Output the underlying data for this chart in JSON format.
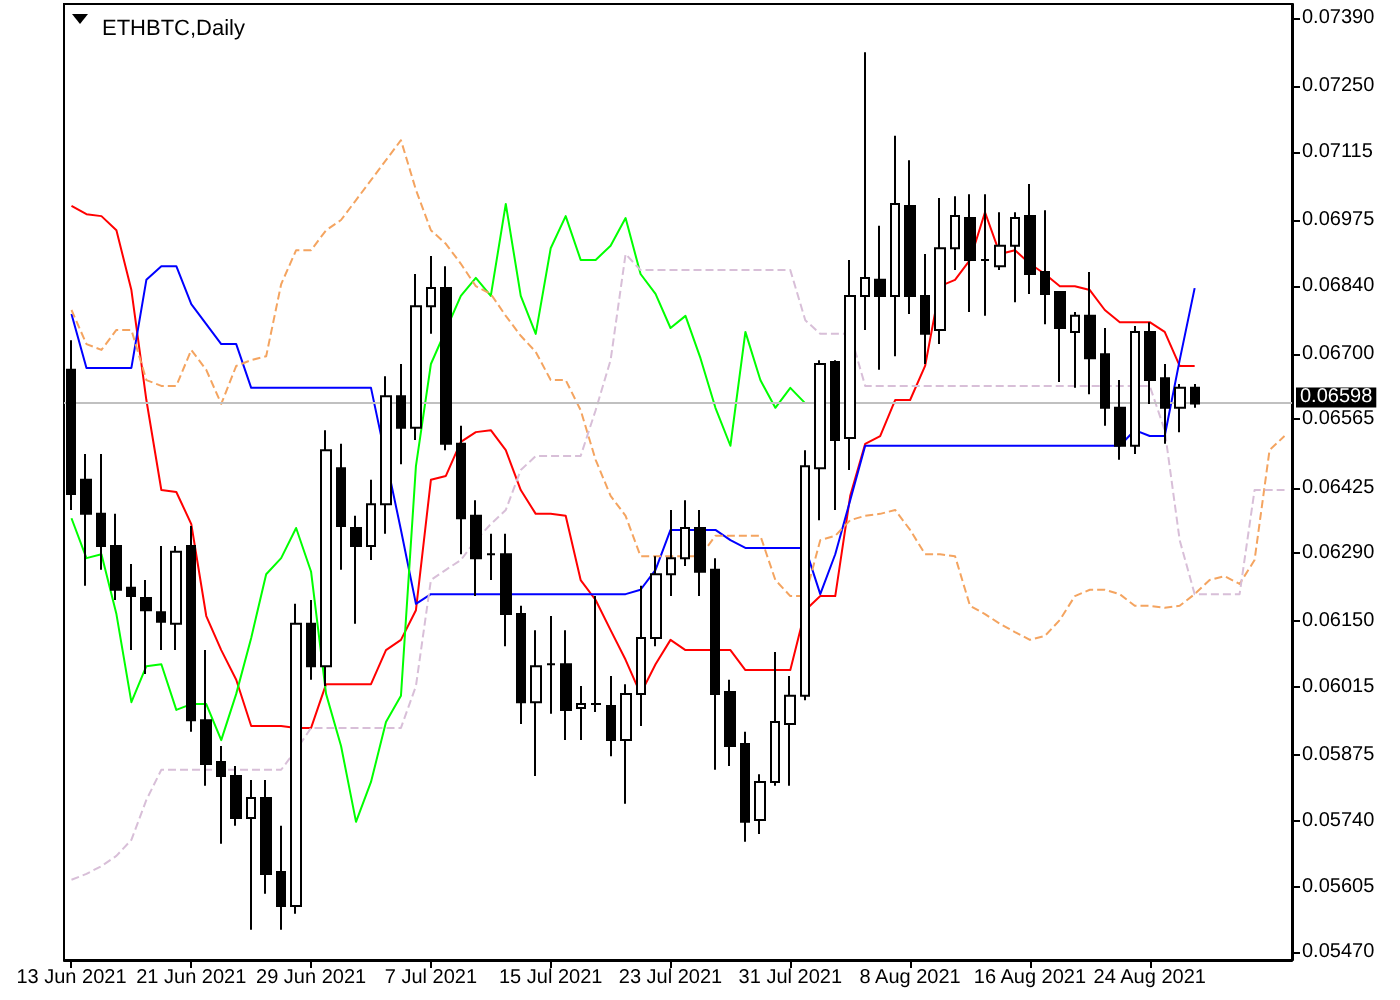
{
  "chart_data": {
    "type": "candlestick",
    "title": "ETHBTC,Daily",
    "categories": [
      "13 Jun 2021",
      null,
      null,
      null,
      null,
      null,
      null,
      null,
      "21 Jun 2021",
      null,
      null,
      null,
      null,
      null,
      null,
      null,
      "29 Jun 2021",
      null,
      null,
      null,
      null,
      null,
      null,
      null,
      "7 Jul 2021",
      null,
      null,
      null,
      null,
      null,
      null,
      null,
      "15 Jul 2021",
      null,
      null,
      null,
      null,
      null,
      null,
      null,
      "23 Jul 2021",
      null,
      null,
      null,
      null,
      null,
      null,
      null,
      "31 Jul 2021",
      null,
      null,
      null,
      null,
      null,
      null,
      null,
      "8 Aug 2021",
      null,
      null,
      null,
      null,
      null,
      null,
      null,
      "16 Aug 2021",
      null,
      null,
      null,
      null,
      null,
      null,
      null,
      "24 Aug 2021",
      null,
      null,
      null,
      null,
      null,
      null,
      null,
      null,
      null
    ],
    "ohlc": [
      [
        0.06667,
        0.06728,
        0.06379,
        0.06412
      ],
      [
        0.06441,
        0.06494,
        0.06223,
        0.06371
      ],
      [
        0.06371,
        0.06494,
        0.06256,
        0.06305
      ],
      [
        0.06305,
        0.06371,
        0.06194,
        0.06215
      ],
      [
        0.06219,
        0.06268,
        0.06091,
        0.06202
      ],
      [
        0.06198,
        0.06235,
        0.06042,
        0.06173
      ],
      [
        0.06169,
        0.06305,
        0.06091,
        0.06149
      ],
      [
        0.06145,
        0.06305,
        0.06091,
        0.06293
      ],
      [
        0.06305,
        0.06346,
        0.05923,
        0.05947
      ],
      [
        0.05947,
        0.06091,
        0.05812,
        0.05857
      ],
      [
        0.05861,
        0.05894,
        0.05693,
        0.05832
      ],
      [
        0.05832,
        0.05853,
        0.0573,
        0.05746
      ],
      [
        0.05746,
        0.05824,
        0.05516,
        0.05787
      ],
      [
        0.05787,
        0.05824,
        0.0559,
        0.05631
      ],
      [
        0.05635,
        0.0573,
        0.05516,
        0.05565
      ],
      [
        0.05565,
        0.06186,
        0.05549,
        0.06145
      ],
      [
        0.06145,
        0.06194,
        0.0603,
        0.06058
      ],
      [
        0.06058,
        0.06543,
        0.06017,
        0.06502
      ],
      [
        0.06465,
        0.06515,
        0.06256,
        0.06346
      ],
      [
        0.06342,
        0.06367,
        0.06145,
        0.06305
      ],
      [
        0.06305,
        0.06441,
        0.06276,
        0.06391
      ],
      [
        0.06391,
        0.06654,
        0.0633,
        0.06613
      ],
      [
        0.06613,
        0.06679,
        0.06473,
        0.06548
      ],
      [
        0.06548,
        0.06864,
        0.06523,
        0.06798
      ],
      [
        0.06798,
        0.06901,
        0.06741,
        0.06835
      ],
      [
        0.06835,
        0.0688,
        0.06502,
        0.06515
      ],
      [
        0.06515,
        0.06552,
        0.06288,
        0.06362
      ],
      [
        0.06367,
        0.06399,
        0.06202,
        0.0628
      ],
      [
        0.06288,
        0.0633,
        0.06235,
        0.06288
      ],
      [
        0.06288,
        0.0633,
        0.06099,
        0.06165
      ],
      [
        0.06165,
        0.06182,
        0.05939,
        0.05984
      ],
      [
        0.05984,
        0.06132,
        0.05832,
        0.06058
      ],
      [
        0.06062,
        0.06161,
        0.0596,
        0.06062
      ],
      [
        0.06062,
        0.06132,
        0.05906,
        0.05968
      ],
      [
        0.05972,
        0.06017,
        0.05906,
        0.0598
      ],
      [
        0.0598,
        0.06202,
        0.05964,
        0.0598
      ],
      [
        0.05976,
        0.06038,
        0.05873,
        0.05906
      ],
      [
        0.05906,
        0.06021,
        0.05775,
        0.06001
      ],
      [
        0.06001,
        0.06223,
        0.05935,
        0.06116
      ],
      [
        0.06116,
        0.06284,
        0.06099,
        0.06247
      ],
      [
        0.06247,
        0.06379,
        0.06202,
        0.0628
      ],
      [
        0.0628,
        0.06399,
        0.06264,
        0.06342
      ],
      [
        0.06342,
        0.06379,
        0.06202,
        0.06252
      ],
      [
        0.06256,
        0.0628,
        0.05845,
        0.06001
      ],
      [
        0.06005,
        0.0603,
        0.05853,
        0.05894
      ],
      [
        0.05898,
        0.05923,
        0.05697,
        0.05738
      ],
      [
        0.05742,
        0.05836,
        0.05713,
        0.0582
      ],
      [
        0.0582,
        0.06087,
        0.05812,
        0.05943
      ],
      [
        0.05939,
        0.06038,
        0.05812,
        0.05997
      ],
      [
        0.05997,
        0.06502,
        0.05988,
        0.06469
      ],
      [
        0.06465,
        0.06687,
        0.06358,
        0.06679
      ],
      [
        0.06683,
        0.06687,
        0.06379,
        0.06523
      ],
      [
        0.06527,
        0.06893,
        0.06461,
        0.06819
      ],
      [
        0.06819,
        0.0732,
        0.06749,
        0.06856
      ],
      [
        0.06852,
        0.06963,
        0.06667,
        0.06819
      ],
      [
        0.06819,
        0.07148,
        0.06695,
        0.07008
      ],
      [
        0.07004,
        0.07098,
        0.06782,
        0.06819
      ],
      [
        0.06819,
        0.06905,
        0.06679,
        0.06741
      ],
      [
        0.06749,
        0.0702,
        0.0672,
        0.06917
      ],
      [
        0.06917,
        0.07024,
        0.06872,
        0.06983
      ],
      [
        0.06979,
        0.07028,
        0.06786,
        0.06893
      ],
      [
        0.06893,
        0.07028,
        0.06778,
        0.06893
      ],
      [
        0.0688,
        0.06991,
        0.06872,
        0.06922
      ],
      [
        0.06922,
        0.06991,
        0.06806,
        0.06979
      ],
      [
        0.06983,
        0.07049,
        0.06823,
        0.06864
      ],
      [
        0.06868,
        0.06995,
        0.06761,
        0.06823
      ],
      [
        0.06827,
        0.06827,
        0.06642,
        0.06753
      ],
      [
        0.06745,
        0.06786,
        0.0663,
        0.06778
      ],
      [
        0.06778,
        0.06868,
        0.06617,
        0.06691
      ],
      [
        0.06699,
        0.06753,
        0.06552,
        0.06589
      ],
      [
        0.06589,
        0.06646,
        0.06482,
        0.06511
      ],
      [
        0.06511,
        0.06757,
        0.06494,
        0.06745
      ],
      [
        0.06745,
        0.06765,
        0.06597,
        0.06646
      ],
      [
        0.0665,
        0.06679,
        0.06515,
        0.06589
      ],
      [
        0.06589,
        0.06638,
        0.06539,
        0.0663
      ],
      [
        0.0663,
        0.06638,
        0.06589,
        0.06598
      ],
      null,
      null,
      null,
      null,
      null,
      null
    ],
    "series": [
      {
        "type": "line",
        "color": "#ff0000",
        "line_style": "solid",
        "values": [
          0.07004,
          0.06987,
          0.06983,
          0.06954,
          0.06831,
          0.06605,
          0.0642,
          0.06416,
          0.0635,
          0.06161,
          0.06091,
          0.0603,
          0.05935,
          0.05935,
          0.05935,
          0.05931,
          0.05931,
          0.06021,
          0.06021,
          0.06021,
          0.06021,
          0.06091,
          0.06112,
          0.06173,
          0.06441,
          0.06449,
          0.06519,
          0.06539,
          0.06543,
          0.06502,
          0.0642,
          0.06371,
          0.06371,
          0.06367,
          0.06235,
          0.06194,
          0.06132,
          0.06071,
          0.06001,
          0.06062,
          0.06112,
          0.06091,
          0.06091,
          0.06091,
          0.06091,
          0.0605,
          0.0605,
          0.0605,
          0.0605,
          0.06173,
          0.06202,
          0.06202,
          0.06408,
          0.06515,
          0.06531,
          0.06605,
          0.06605,
          0.06675,
          0.06839,
          0.06852,
          0.06893,
          0.06991,
          0.06905,
          0.06913,
          0.06885,
          0.06864,
          0.06839,
          0.06839,
          0.06831,
          0.0679,
          0.06765,
          0.06765,
          0.06765,
          0.06745,
          0.06675,
          0.06675,
          null,
          null,
          null,
          null,
          null,
          null
        ]
      },
      {
        "type": "line",
        "color": "#0000ff",
        "line_style": "solid",
        "values": [
          0.06782,
          0.06671,
          0.06671,
          0.06671,
          0.06671,
          0.06852,
          0.0688,
          0.0688,
          0.06802,
          0.06761,
          0.0672,
          0.0672,
          0.0663,
          0.0663,
          0.0663,
          0.0663,
          0.0663,
          0.0663,
          0.0663,
          0.0663,
          0.0663,
          null,
          0.06338,
          0.06186,
          0.06206,
          0.06206,
          0.06206,
          0.06206,
          0.06206,
          0.06206,
          0.06206,
          0.06206,
          0.06206,
          0.06206,
          0.06206,
          0.06206,
          0.06206,
          0.06206,
          0.06215,
          0.06256,
          0.06338,
          0.06338,
          0.06338,
          0.06338,
          0.06317,
          0.06301,
          0.06301,
          0.06301,
          0.06301,
          0.06301,
          0.06206,
          0.06288,
          0.06399,
          0.06511,
          0.06511,
          0.06511,
          0.06511,
          0.06511,
          0.06511,
          0.06511,
          0.06511,
          0.06511,
          0.06511,
          0.06511,
          0.06511,
          0.06511,
          0.06511,
          0.06511,
          0.06511,
          0.06511,
          0.06511,
          0.06543,
          0.06531,
          0.06531,
          0.06687,
          0.06835,
          null,
          null,
          null,
          null,
          null,
          null
        ]
      },
      {
        "type": "line",
        "color": "#00ff00",
        "line_style": "solid",
        "values": [
          0.06362,
          0.0628,
          0.06288,
          0.06165,
          0.05984,
          0.06058,
          0.06062,
          0.05968,
          0.0598,
          0.0598,
          0.05906,
          0.06001,
          0.06116,
          0.06247,
          0.0628,
          0.06342,
          0.06252,
          0.06001,
          0.05894,
          0.05738,
          0.0582,
          0.05943,
          0.05997,
          0.06469,
          0.06679,
          null,
          0.06819,
          0.06856,
          0.06819,
          0.07008,
          0.06819,
          0.06741,
          0.06917,
          0.06983,
          0.06893,
          0.06893,
          0.06922,
          0.06979,
          0.06864,
          0.06823,
          0.06753,
          0.06778,
          0.06691,
          0.06589,
          0.06511,
          0.06745,
          0.06646,
          0.06589,
          0.0663,
          0.06598,
          null,
          null,
          null,
          null,
          null,
          null,
          null,
          null,
          null,
          null,
          null,
          null,
          null,
          null,
          null,
          null,
          null,
          null,
          null,
          null,
          null,
          null,
          null,
          null,
          null,
          null,
          null,
          null,
          null,
          null,
          null,
          null
        ]
      },
      {
        "type": "line",
        "color": "#f4a460",
        "line_style": "dashed",
        "values": [
          0.0679,
          0.0672,
          0.06708,
          0.06749,
          0.06749,
          0.06646,
          0.06634,
          0.06634,
          0.06708,
          0.06667,
          0.06597,
          0.06675,
          0.06687,
          0.06695,
          0.06843,
          0.06913,
          0.06913,
          0.06954,
          0.06975,
          0.07016,
          0.07057,
          0.07098,
          0.07139,
          0.07037,
          0.06954,
          0.06926,
          0.06885,
          0.06839,
          0.06823,
          0.06778,
          0.06737,
          0.06704,
          0.06646,
          0.06646,
          0.06584,
          0.06482,
          0.06408,
          0.06367,
          0.06284,
          0.06284,
          0.06284,
          0.06284,
          0.06284,
          0.06326,
          0.06326,
          0.06326,
          0.06326,
          0.06235,
          0.06202,
          0.06202,
          0.06317,
          0.06326,
          0.06358,
          0.06367,
          0.06371,
          0.06379,
          0.06338,
          0.06288,
          0.06288,
          0.06284,
          0.06182,
          0.06165,
          0.06145,
          0.06128,
          0.06112,
          0.0612,
          0.06153,
          0.06202,
          0.06215,
          0.06215,
          0.06206,
          0.06182,
          0.06182,
          0.06178,
          0.06182,
          0.06206,
          0.06235,
          0.06243,
          0.06227,
          0.06276,
          0.06502,
          0.06531
        ]
      },
      {
        "type": "line",
        "color": "#d8bfd8",
        "line_style": "dashed",
        "values": [
          0.05619,
          0.05631,
          0.05647,
          0.05668,
          0.05701,
          0.05783,
          0.05845,
          0.05845,
          0.05845,
          0.05845,
          0.05845,
          0.05845,
          0.05845,
          0.05845,
          0.05845,
          0.05886,
          0.05931,
          0.05931,
          0.05931,
          0.05931,
          0.05931,
          0.05931,
          0.05931,
          0.06017,
          0.06235,
          0.06256,
          0.06276,
          0.06317,
          0.0635,
          0.06379,
          0.06461,
          0.0649,
          0.0649,
          0.0649,
          0.0649,
          0.06584,
          0.06687,
          0.06905,
          0.06872,
          0.06872,
          0.06872,
          0.06872,
          0.06872,
          0.06872,
          0.06872,
          0.06872,
          0.06872,
          0.06872,
          0.06872,
          0.06769,
          0.06741,
          0.06741,
          0.06741,
          0.06634,
          0.06634,
          0.06634,
          0.06634,
          0.06634,
          0.06634,
          0.06634,
          0.06634,
          0.06634,
          0.06634,
          0.06634,
          0.06634,
          0.06634,
          0.06634,
          0.06634,
          0.06634,
          0.06634,
          0.06634,
          0.06634,
          0.06634,
          0.06543,
          0.06317,
          0.06206,
          0.06206,
          0.06206,
          0.06206,
          0.0642,
          0.0642,
          0.0642
        ]
      }
    ],
    "ylim": [
      0.05454,
      0.07419
    ],
    "yticks": [
      {
        "value": 0.0739,
        "label": "0.07390"
      },
      {
        "value": 0.0725,
        "label": "0.07250"
      },
      {
        "value": 0.07115,
        "label": "0.07115"
      },
      {
        "value": 0.06975,
        "label": "0.06975"
      },
      {
        "value": 0.0684,
        "label": "0.06840"
      },
      {
        "value": 0.067,
        "label": "0.06700"
      },
      {
        "value": 0.06565,
        "label": "0.06565"
      },
      {
        "value": 0.06425,
        "label": "0.06425"
      },
      {
        "value": 0.0629,
        "label": "0.06290"
      },
      {
        "value": 0.0615,
        "label": "0.06150"
      },
      {
        "value": 0.06015,
        "label": "0.06015"
      },
      {
        "value": 0.05875,
        "label": "0.05875"
      },
      {
        "value": 0.0574,
        "label": "0.05740"
      },
      {
        "value": 0.05605,
        "label": "0.05605"
      },
      {
        "value": 0.0547,
        "label": "0.05470"
      }
    ],
    "ref_lines": [
      {
        "axis": "y",
        "value": 0.06598,
        "label": "0.06598",
        "color": "#c0c0c0"
      }
    ]
  }
}
